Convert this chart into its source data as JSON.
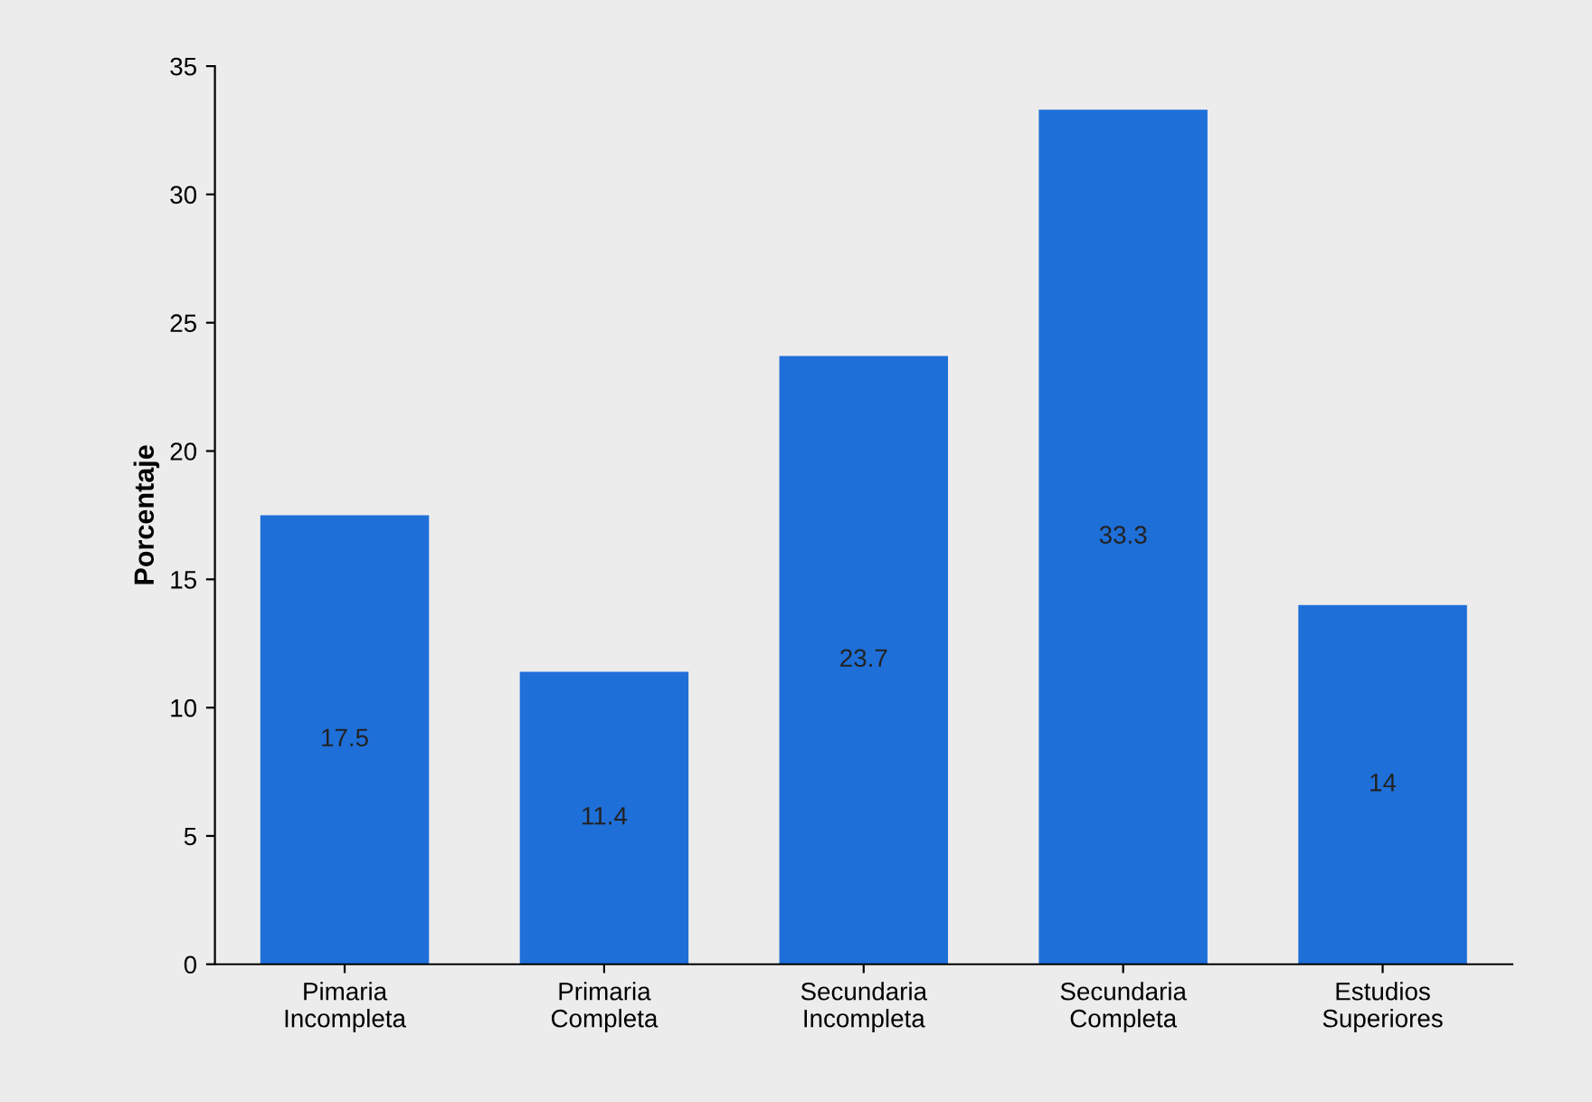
{
  "chart_data": {
    "type": "bar",
    "ylabel": "Porcentaje",
    "categories": [
      "Pimaria\nIncompleta",
      "Primaria\nCompleta",
      "Secundaria\nIncompleta",
      "Secundaria\nCompleta",
      "Estudios\nSuperiores"
    ],
    "values": [
      17.5,
      11.4,
      23.7,
      33.3,
      14
    ],
    "color": "#1f6fd8",
    "ylim": [
      0,
      35
    ],
    "yticks": [
      0,
      5,
      10,
      15,
      20,
      25,
      30,
      35
    ],
    "grid": false,
    "data_labels": true
  }
}
